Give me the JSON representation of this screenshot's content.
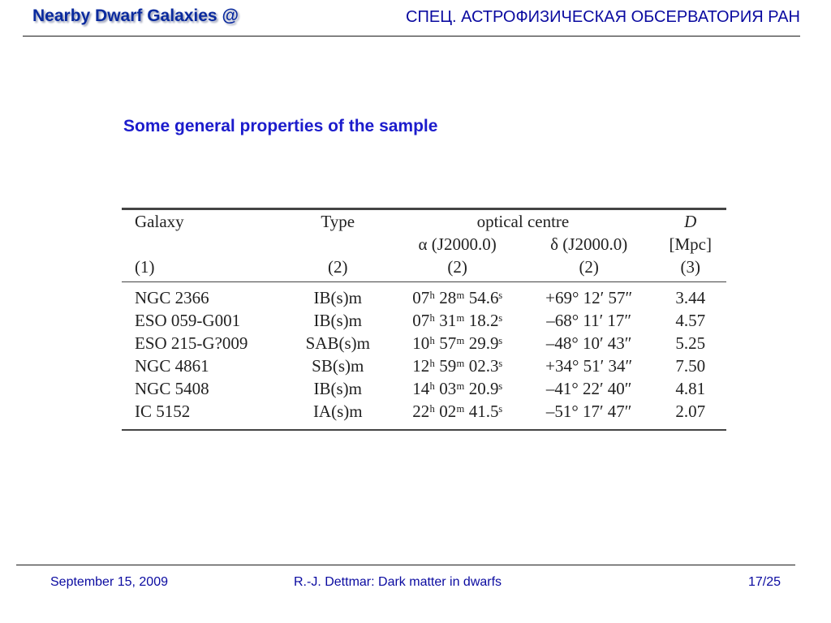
{
  "header": {
    "left_title": "Nearby Dwarf Galaxies @",
    "right_title": "СПЕЦ. АСТРОФИЗИЧЕСКАЯ ОБСЕРВАТОРИЯ РАН"
  },
  "slide_title": "Some general properties of the sample",
  "table": {
    "header_row1": {
      "galaxy": "Galaxy",
      "type": "Type",
      "optical_centre": "optical centre",
      "d": "D"
    },
    "header_row2": {
      "alpha": "α (J2000.0)",
      "delta": "δ (J2000.0)",
      "unit": "[Mpc]"
    },
    "header_row3": {
      "galaxy": "(1)",
      "type": "(2)",
      "alpha": "(2)",
      "delta": "(2)",
      "d": "(3)"
    },
    "rows": [
      {
        "galaxy": "NGC 2366",
        "type": "IB(s)m",
        "ra": "07ʰ 28ᵐ 54.6ˢ",
        "dec": "+69° 12′ 57″",
        "d": "3.44"
      },
      {
        "galaxy": "ESO 059-G001",
        "type": "IB(s)m",
        "ra": "07ʰ 31ᵐ 18.2ˢ",
        "dec": "–68° 11′ 17″",
        "d": "4.57"
      },
      {
        "galaxy": "ESO 215-G?009",
        "type": "SAB(s)m",
        "ra": "10ʰ 57ᵐ 29.9ˢ",
        "dec": "–48° 10′ 43″",
        "d": "5.25"
      },
      {
        "galaxy": "NGC 4861",
        "type": "SB(s)m",
        "ra": "12ʰ 59ᵐ 02.3ˢ",
        "dec": "+34° 51′ 34″",
        "d": "7.50"
      },
      {
        "galaxy": "NGC 5408",
        "type": "IB(s)m",
        "ra": "14ʰ 03ᵐ 20.9ˢ",
        "dec": "–41° 22′ 40″",
        "d": "4.81"
      },
      {
        "galaxy": "IC 5152",
        "type": "IA(s)m",
        "ra": "22ʰ 02ᵐ 41.5ˢ",
        "dec": "–51° 17′ 47″",
        "d": "2.07"
      }
    ]
  },
  "footer": {
    "date": "September 15, 2009",
    "author_title": "R.-J. Dettmar: Dark matter in dwarfs",
    "page": "17/25"
  }
}
